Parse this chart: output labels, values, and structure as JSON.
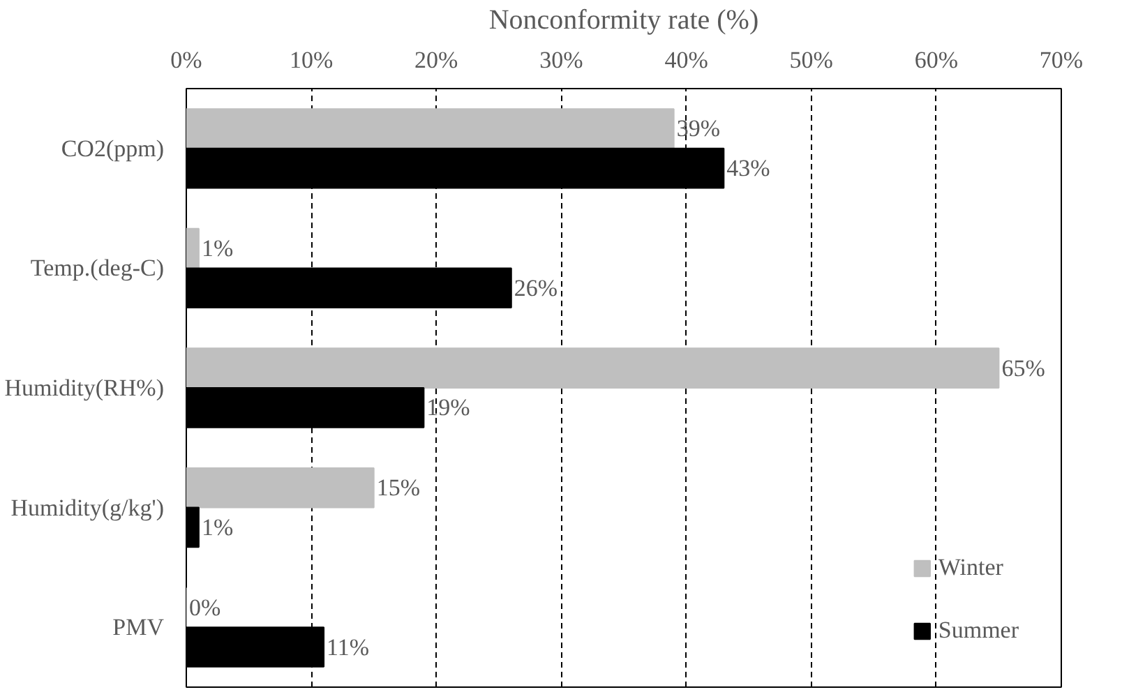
{
  "chart_data": {
    "type": "bar",
    "orientation": "horizontal",
    "xlabel": "Nonconformity rate (%)",
    "categories": [
      "CO2(ppm)",
      "Temp.(deg-C)",
      "Humidity(RH%)",
      "Humidity(g/kg')",
      "PMV"
    ],
    "series": [
      {
        "name": "Winter",
        "color": "#bfbfbf",
        "values": [
          39,
          1,
          65,
          15,
          0
        ],
        "value_labels": [
          "39%",
          "1%",
          "65%",
          "15%",
          "0%"
        ]
      },
      {
        "name": "Summer",
        "color": "#000000",
        "values": [
          43,
          26,
          19,
          1,
          11
        ],
        "value_labels": [
          "43%",
          "26%",
          "19%",
          "1%",
          "11%"
        ]
      }
    ],
    "xlim": [
      0,
      70
    ],
    "xticks": [
      {
        "value": 0,
        "label": "0%"
      },
      {
        "value": 10,
        "label": "10%"
      },
      {
        "value": 20,
        "label": "20%"
      },
      {
        "value": 30,
        "label": "30%"
      },
      {
        "value": 40,
        "label": "40%"
      },
      {
        "value": 50,
        "label": "50%"
      },
      {
        "value": 60,
        "label": "60%"
      },
      {
        "value": 70,
        "label": "70%"
      }
    ],
    "grid": "x",
    "legend": "bottom right"
  }
}
